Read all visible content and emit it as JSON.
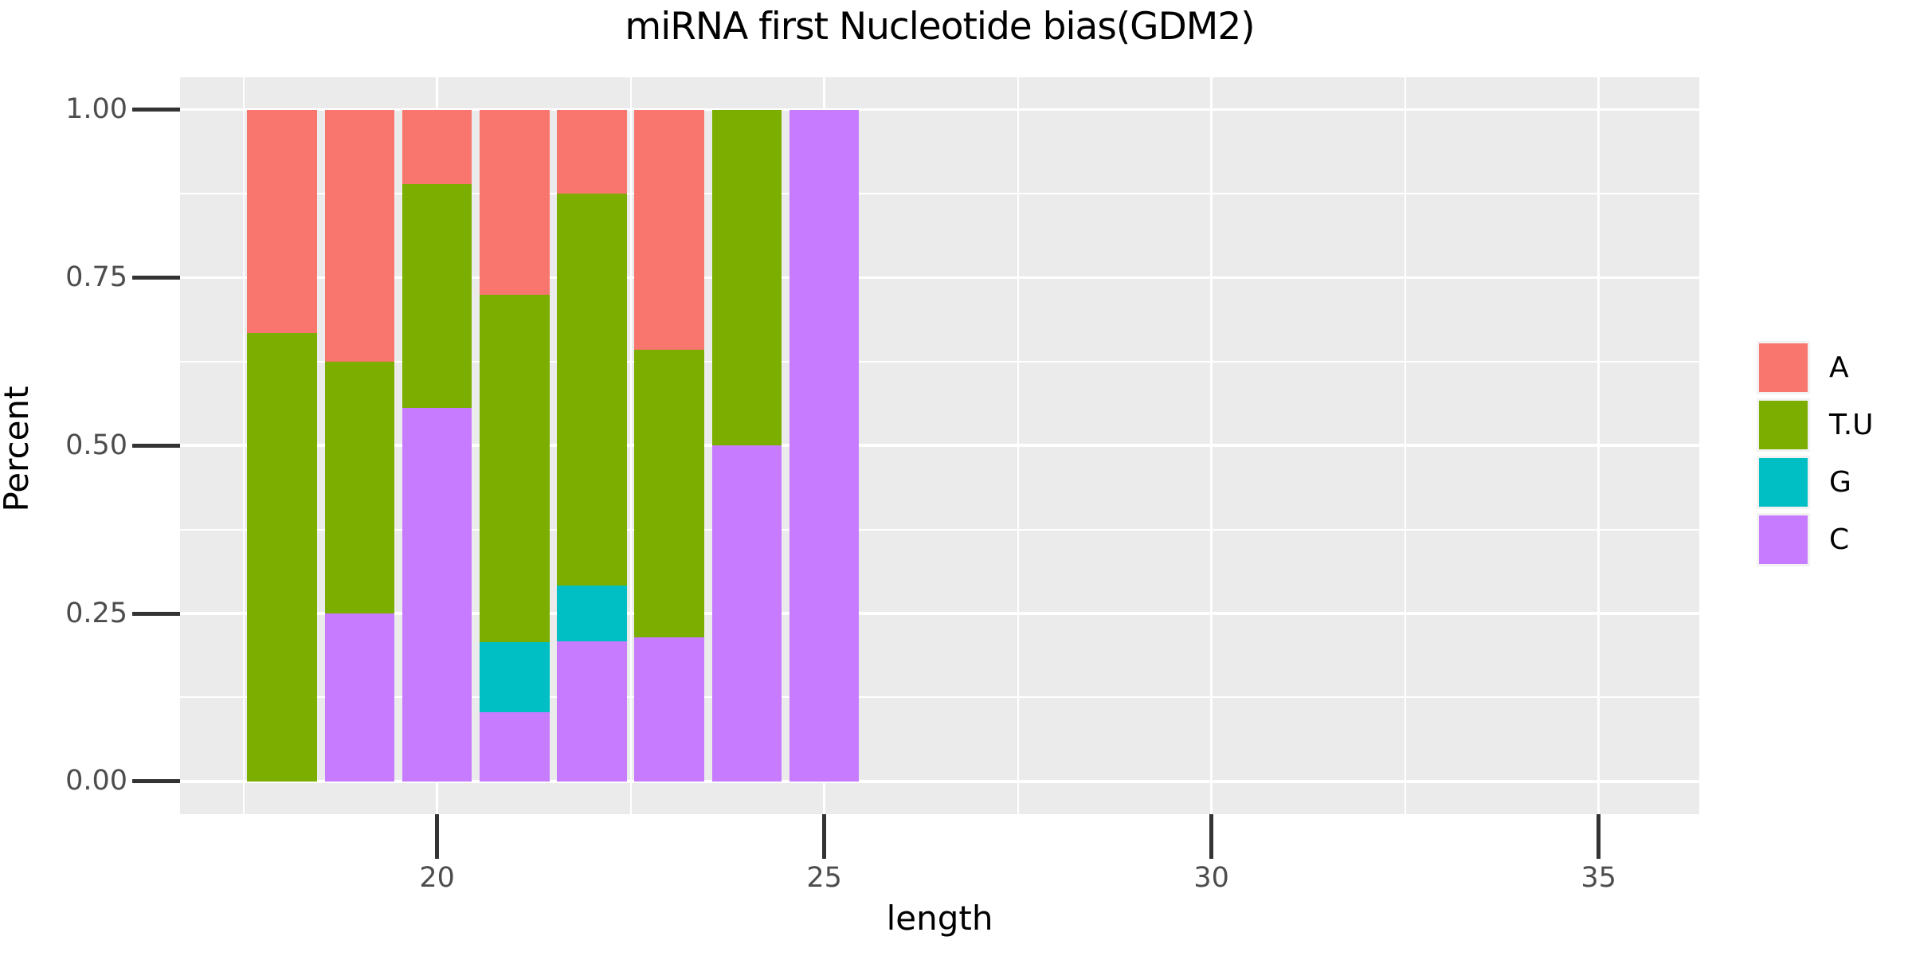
{
  "chart_data": {
    "type": "bar",
    "stacked": true,
    "title": "miRNA first Nucleotide bias(GDM2)",
    "xlabel": "length",
    "ylabel": "Percent",
    "categories": [
      18,
      19,
      20,
      21,
      22,
      23,
      24,
      25
    ],
    "series": [
      {
        "name": "A",
        "color": "#F8766D",
        "values": [
          0.333,
          0.375,
          0.111,
          0.276,
          0.125,
          0.357,
          0,
          0
        ]
      },
      {
        "name": "T.U",
        "color": "#7CAE00",
        "values": [
          0.667,
          0.375,
          0.333,
          0.517,
          0.583,
          0.429,
          0.5,
          0
        ]
      },
      {
        "name": "G",
        "color": "#00BFC4",
        "values": [
          0,
          0,
          0,
          0.104,
          0.084,
          0,
          0,
          0
        ]
      },
      {
        "name": "C",
        "color": "#C77CFF",
        "values": [
          0,
          0.25,
          0.556,
          0.103,
          0.208,
          0.214,
          0.5,
          1.0
        ]
      }
    ],
    "stack_order_bottom_to_top": [
      "C",
      "G",
      "T.U",
      "A"
    ],
    "x_axis": {
      "ticks": [
        20,
        25,
        30,
        35
      ],
      "tick_labels": [
        "20",
        "25",
        "30",
        "35"
      ],
      "minor_ticks": [
        17.5,
        22.5,
        27.5,
        32.5
      ],
      "range": [
        16.7,
        36.3
      ]
    },
    "y_axis": {
      "ticks": [
        1.0,
        0.75,
        0.5,
        0.25,
        0.0
      ],
      "tick_labels": [
        "1.00",
        "0.75",
        "0.50",
        "0.25",
        "0.00"
      ],
      "minor_ticks": [
        0.125,
        0.375,
        0.625,
        0.875
      ],
      "range": [
        0,
        1
      ]
    },
    "legend": {
      "position": "right",
      "entries": [
        {
          "label": "A",
          "color": "#F8766D"
        },
        {
          "label": "T.U",
          "color": "#7CAE00"
        },
        {
          "label": "G",
          "color": "#00BFC4"
        },
        {
          "label": "C",
          "color": "#C77CFF"
        }
      ]
    },
    "bar_width_fraction": 0.9,
    "colors": {
      "panel_background": "#EBEBEB",
      "gridline": "#FFFFFF",
      "tick_mark": "#333333",
      "tick_label": "#4D4D4D",
      "axis_title": "#000000",
      "title": "#000000",
      "legend_key_background": "#F2F2F2"
    }
  }
}
